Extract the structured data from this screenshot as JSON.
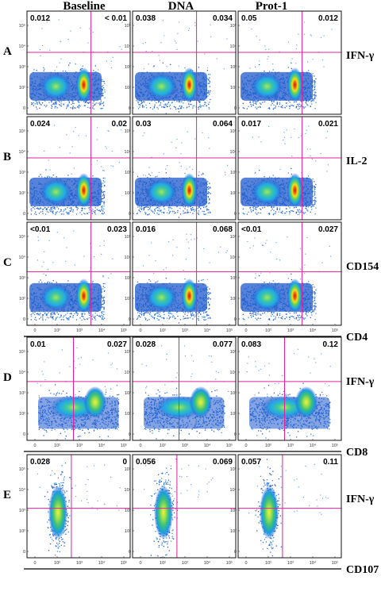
{
  "columns": [
    "Baseline",
    "DNA",
    "Prot-1"
  ],
  "rows": [
    {
      "letter": "A",
      "marker": "IFN-γ",
      "x_axis": "",
      "quadrants": [
        [
          "0.012",
          "< 0.01"
        ],
        [
          "0.038",
          "0.034"
        ],
        [
          "0.05",
          "0.012"
        ]
      ]
    },
    {
      "letter": "B",
      "marker": "IL-2",
      "x_axis": "",
      "quadrants": [
        [
          "0.024",
          "0.02"
        ],
        [
          "0.03",
          "0.064"
        ],
        [
          "0.017",
          "0.021"
        ]
      ]
    },
    {
      "letter": "C",
      "marker": "CD154",
      "x_axis": "CD4",
      "quadrants": [
        [
          "<0.01",
          "0.023"
        ],
        [
          "0.016",
          "0.068"
        ],
        [
          "<0.01",
          "0.027"
        ]
      ]
    },
    {
      "letter": "D",
      "marker": "IFN-γ",
      "x_axis": "CD8",
      "quadrants": [
        [
          "0.01",
          "0.027"
        ],
        [
          "0.028",
          "0.077"
        ],
        [
          "0.083",
          "0.12"
        ]
      ]
    },
    {
      "letter": "E",
      "marker": "IFN-γ",
      "x_axis": "CD107",
      "quadrants": [
        [
          "0.028",
          "0"
        ],
        [
          "0.056",
          "0.069"
        ],
        [
          "0.057",
          "0.11"
        ]
      ]
    }
  ],
  "y_ticks": [
    "10⁵",
    "10⁴",
    "10³",
    "10²",
    "0"
  ],
  "x_ticks": [
    "0",
    "10²",
    "10³",
    "10⁴",
    "10⁵"
  ],
  "colors": {
    "gate": "#e0209a",
    "frame": "#111111"
  }
}
